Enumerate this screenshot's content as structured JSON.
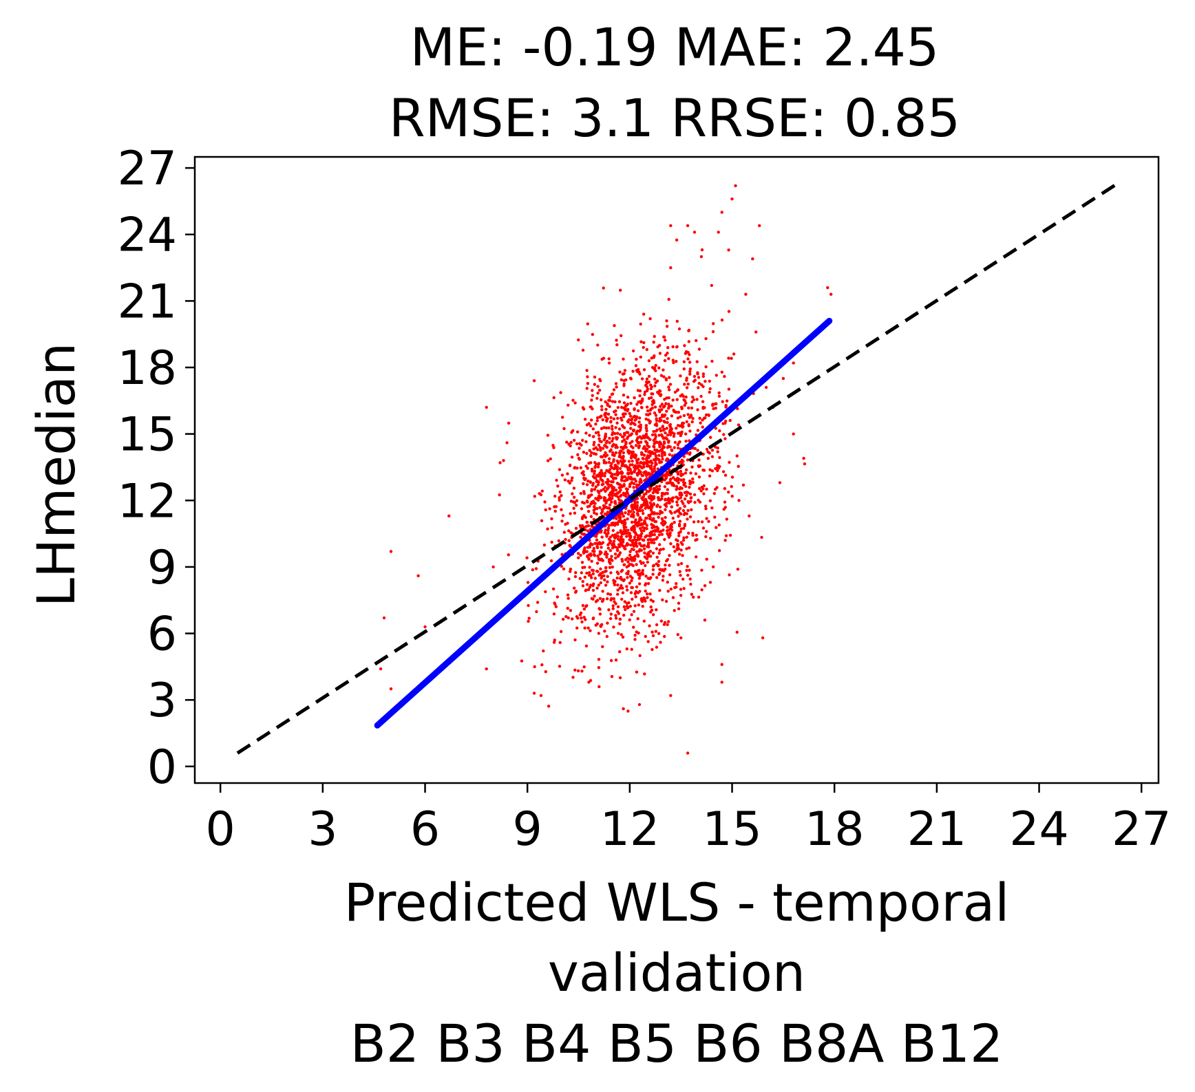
{
  "chart_data": {
    "type": "scatter",
    "title_lines": [
      "ME: -0.19 MAE: 2.45",
      "RMSE: 3.1 RRSE: 0.85"
    ],
    "xlabel_lines": [
      "Predicted WLS - temporal",
      "validation",
      "B2 B3 B4 B5 B6 B8A B12"
    ],
    "ylabel": "LHmedian",
    "xlim": [
      -0.75,
      27.5
    ],
    "ylim": [
      -0.75,
      27.5
    ],
    "xticks": [
      0,
      3,
      6,
      9,
      12,
      15,
      18,
      21,
      24,
      27
    ],
    "yticks": [
      0,
      3,
      6,
      9,
      12,
      15,
      18,
      21,
      24,
      27
    ],
    "grid": false,
    "series": [
      {
        "kind": "points",
        "color": "#ff0000",
        "points": [
          [
            4.7,
            4.4
          ],
          [
            4.8,
            6.7
          ],
          [
            5.0,
            9.7
          ],
          [
            5.0,
            3.5
          ],
          [
            5.8,
            8.6
          ],
          [
            6.0,
            6.3
          ],
          [
            6.7,
            11.3
          ],
          [
            7.8,
            4.4
          ],
          [
            7.8,
            16.2
          ],
          [
            8.3,
            13.8
          ],
          [
            8.4,
            14.6
          ],
          [
            8.2,
            13.7
          ],
          [
            8.0,
            9.0
          ],
          [
            9.2,
            17.4
          ],
          [
            9.4,
            3.2
          ],
          [
            9.2,
            3.3
          ],
          [
            10.4,
            16.4
          ],
          [
            10.8,
            3.8
          ],
          [
            11.1,
            3.6
          ],
          [
            11.4,
            18.2
          ],
          [
            11.8,
            17.7
          ],
          [
            12.4,
            18.9
          ],
          [
            12.6,
            20.2
          ],
          [
            13.2,
            22.5
          ],
          [
            13.2,
            24.4
          ],
          [
            13.7,
            24.4
          ],
          [
            13.9,
            24.1
          ],
          [
            14.1,
            23.0
          ],
          [
            14.4,
            21.7
          ],
          [
            14.6,
            24.1
          ],
          [
            14.7,
            25.0
          ],
          [
            15.0,
            25.6
          ],
          [
            15.1,
            26.2
          ],
          [
            14.9,
            23.3
          ],
          [
            15.4,
            21.3
          ],
          [
            15.6,
            22.9
          ],
          [
            15.8,
            24.4
          ],
          [
            15.7,
            19.6
          ],
          [
            16.0,
            17.1
          ],
          [
            16.5,
            17.5
          ],
          [
            16.2,
            16.2
          ],
          [
            16.8,
            15.0
          ],
          [
            17.1,
            13.9
          ],
          [
            16.4,
            12.8
          ],
          [
            16.8,
            18.2
          ],
          [
            17.9,
            21.3
          ],
          [
            17.8,
            21.6
          ],
          [
            15.9,
            5.8
          ],
          [
            15.5,
            11.3
          ],
          [
            14.8,
            10.2
          ],
          [
            14.7,
            4.6
          ],
          [
            14.7,
            3.8
          ],
          [
            14.2,
            6.6
          ],
          [
            13.5,
            5.8
          ],
          [
            13.2,
            3.2
          ],
          [
            13.7,
            0.6
          ],
          [
            12.9,
            5.6
          ],
          [
            12.3,
            5.0
          ],
          [
            11.6,
            4.8
          ],
          [
            10.6,
            4.3
          ],
          [
            10.2,
            6.7
          ],
          [
            9.8,
            5.7
          ],
          [
            9.3,
            7.4
          ]
        ],
        "cloud": {
          "n": 2600,
          "cx": 12.2,
          "cy": 12.4,
          "sx": 1.15,
          "sy": 3.0,
          "rho": 0.3
        }
      },
      {
        "kind": "line",
        "name": "",
        "color": "#0000ff",
        "style": "solid",
        "x": [
          4.6,
          17.85
        ],
        "y": [
          1.85,
          20.1
        ]
      },
      {
        "kind": "line",
        "name": "",
        "color": "#000000",
        "style": "dashed",
        "x": [
          0.5,
          26.3
        ],
        "y": [
          0.6,
          26.3
        ]
      }
    ]
  }
}
